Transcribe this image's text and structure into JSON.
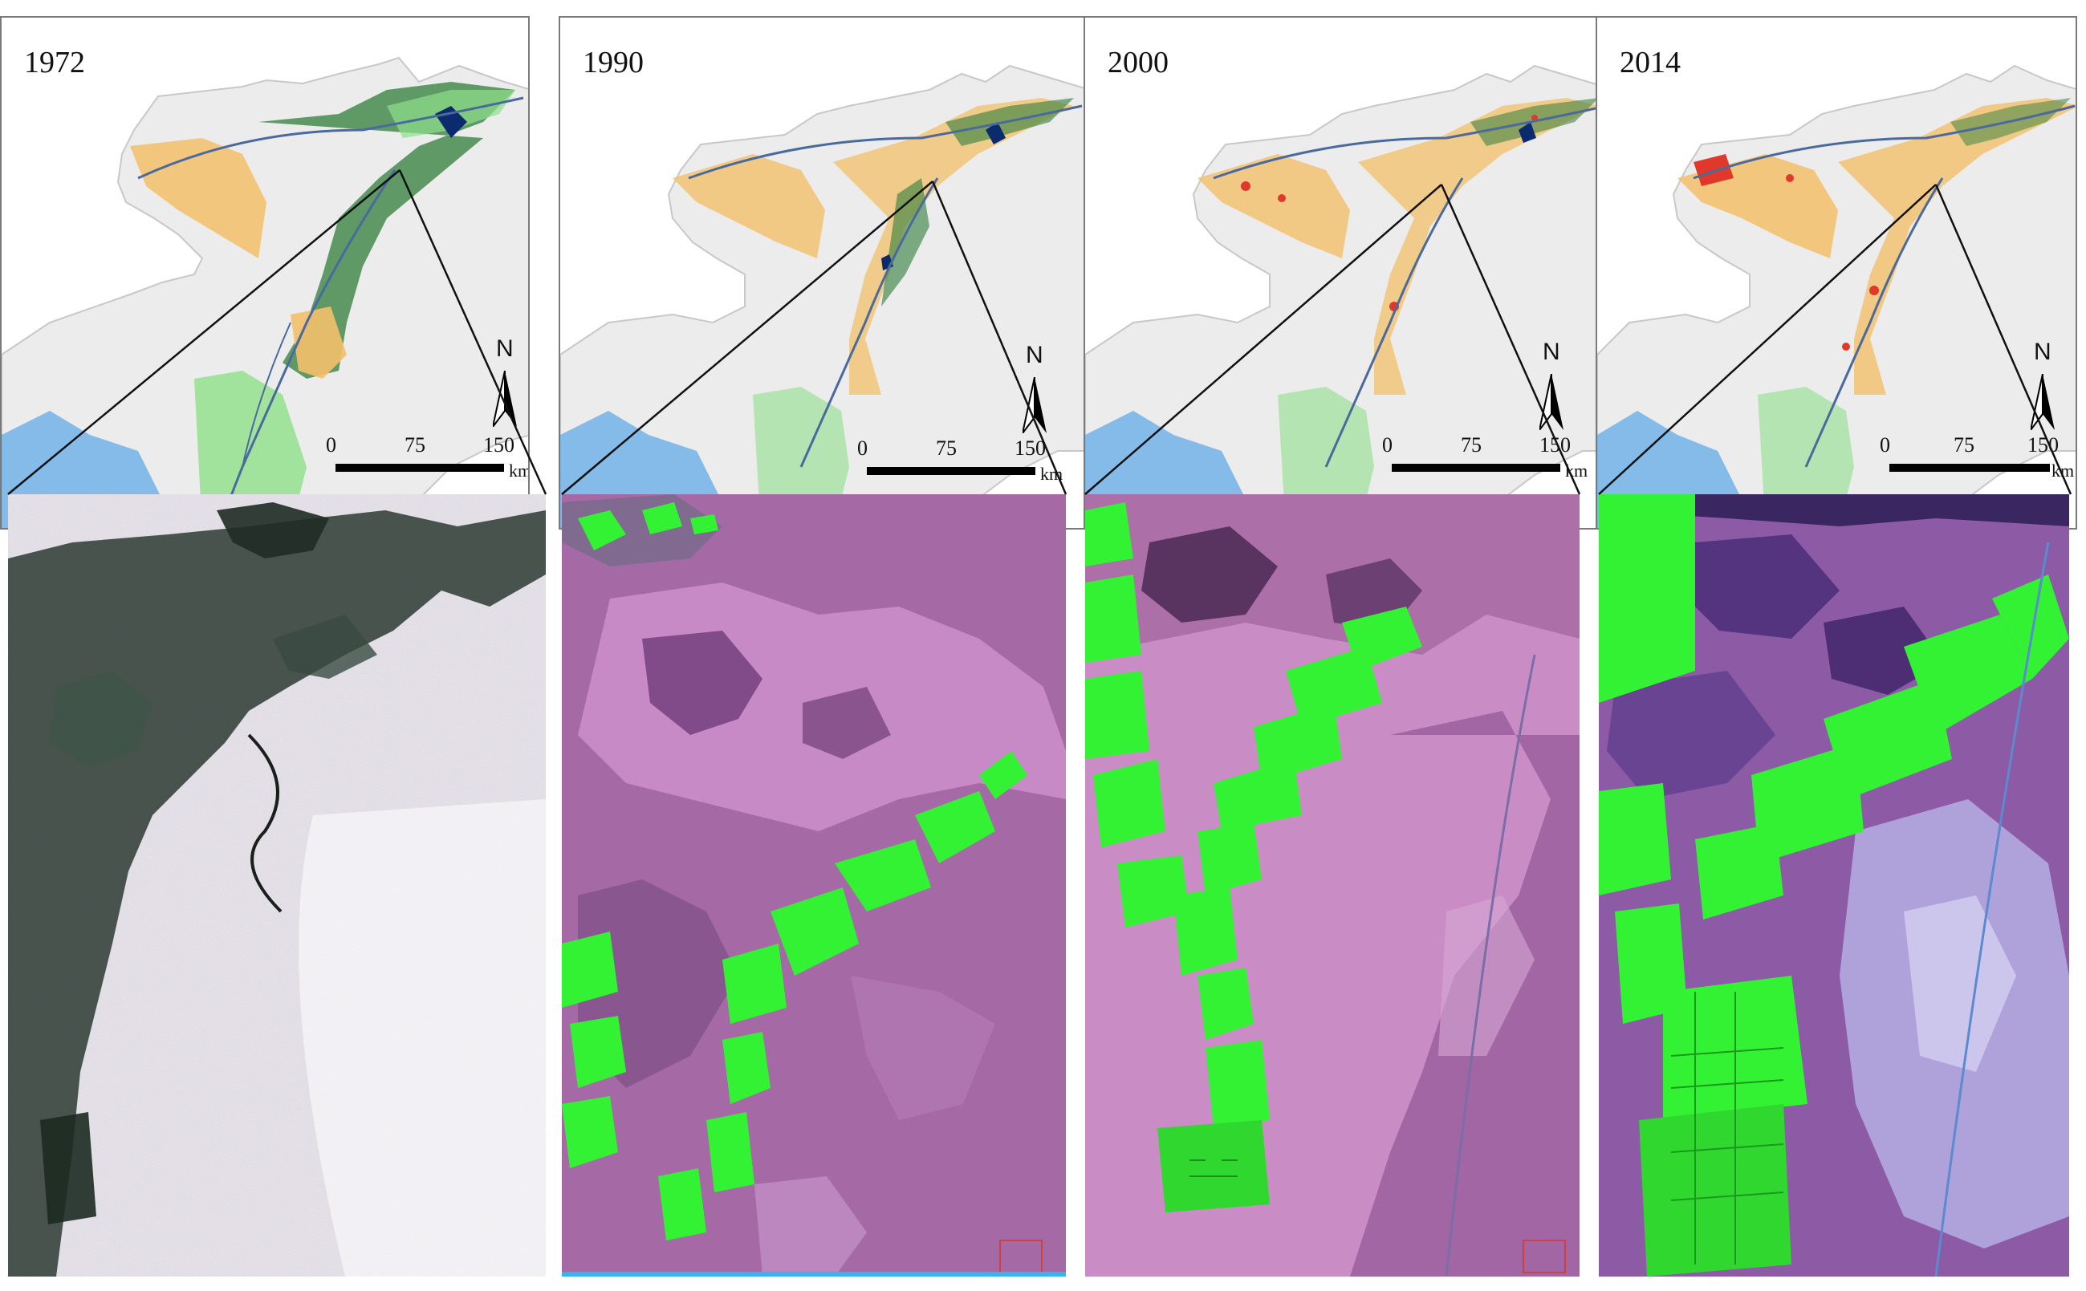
{
  "figure": {
    "panels": [
      {
        "year": "1972",
        "north_label": "N",
        "scale_ticks": [
          "0",
          "75",
          "150"
        ],
        "scale_unit": "km",
        "image_palette": "grayscale"
      },
      {
        "year": "1990",
        "north_label": "N",
        "scale_ticks": [
          "0",
          "75",
          "150"
        ],
        "scale_unit": "km",
        "image_palette": "false-color-magenta"
      },
      {
        "year": "2000",
        "north_label": "N",
        "scale_ticks": [
          "0",
          "75",
          "150"
        ],
        "scale_unit": "km",
        "image_palette": "false-color-pink"
      },
      {
        "year": "2014",
        "north_label": "N",
        "scale_ticks": [
          "0",
          "75",
          "150"
        ],
        "scale_unit": "km",
        "image_palette": "false-color-purple"
      }
    ],
    "colors": {
      "region": "#ececec",
      "river": "#4a6a9e",
      "desert": "#f3c06a",
      "irrigation": "#2f7d3a",
      "water": "#0c2a6e",
      "grassland": "#8fe08a",
      "snow": "#5aa7e8",
      "urban": "#e0382a",
      "crop_false_color": "#33f233"
    }
  }
}
